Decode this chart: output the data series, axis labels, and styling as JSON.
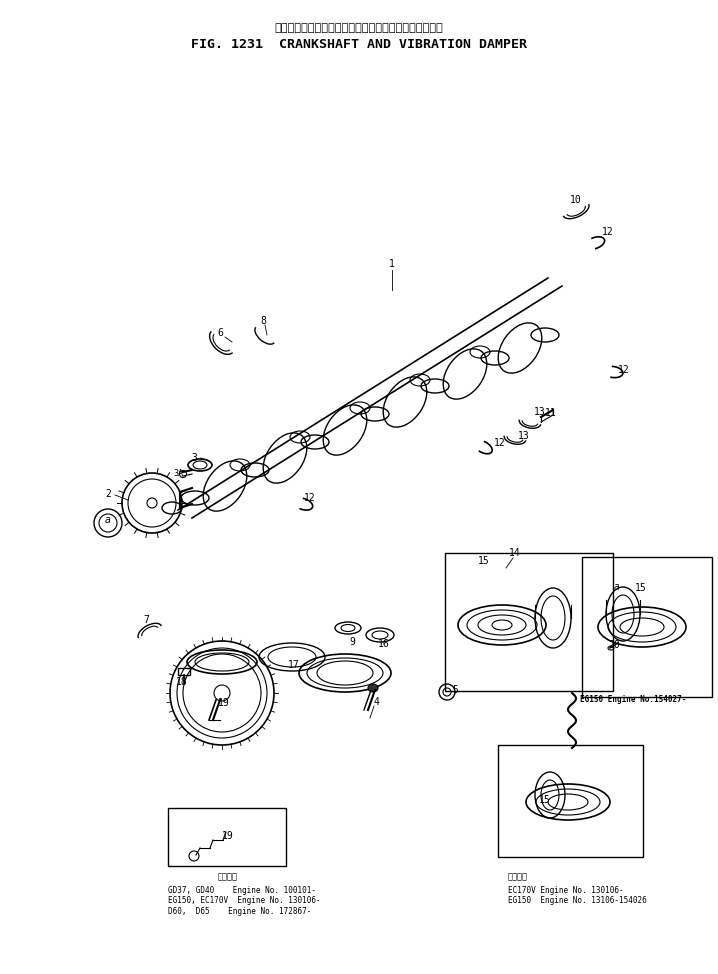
{
  "title_japanese": "クランクシャフト　および　バイブレーション　ダンパ",
  "title_english": "FIG. 1231  CRANKSHAFT AND VIBRATION DAMPER",
  "background_color": "#ffffff",
  "line_color": "#000000",
  "footnote_left_label": "適用機種",
  "footnote_left": "GD37, GD40    Engine No. 100101-\nEG150, EC170V  Engine No. 130106-\nD60,  D65    Engine No. 172867-",
  "footnote_right_label": "適用機種",
  "footnote_right": "EC170V Engine No. 130106-\nEG150  Engine No. 13106-154026",
  "footnote_right2_label": "EG150 Engine No.154027-"
}
